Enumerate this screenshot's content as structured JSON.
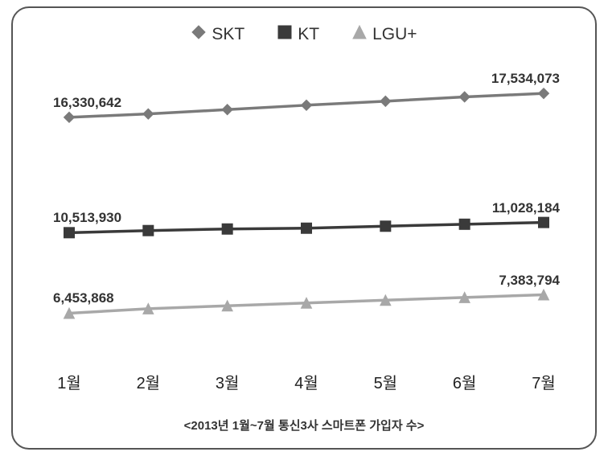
{
  "chart": {
    "type": "line",
    "background_color": "#ffffff",
    "border_color": "#555555",
    "border_radius": 22,
    "caption": "<2013년 1월~7월 통신3사 스마트폰 가입자 수>",
    "caption_fontsize": 15,
    "ylim": [
      4000000,
      19000000
    ],
    "categories": [
      "1월",
      "2월",
      "3월",
      "4월",
      "5월",
      "6월",
      "7월"
    ],
    "x_label_fontsize": 20,
    "data_label_fontsize": 17,
    "legend_fontsize": 21,
    "series": [
      {
        "name": "SKT",
        "color": "#7a7a7a",
        "marker": "diamond",
        "marker_size": 13,
        "line_width": 3.5,
        "values": [
          16330642,
          16500000,
          16720000,
          16940000,
          17140000,
          17360000,
          17534073
        ],
        "shown_labels": {
          "0": "16,330,642",
          "6": "17,534,073"
        }
      },
      {
        "name": "KT",
        "color": "#3a3a3a",
        "marker": "square",
        "marker_size": 13,
        "line_width": 3.5,
        "values": [
          10513930,
          10620000,
          10700000,
          10740000,
          10840000,
          10940000,
          11028184
        ],
        "shown_labels": {
          "0": "10,513,930",
          "6": "11,028,184"
        }
      },
      {
        "name": "LGU+",
        "color": "#a8a8a8",
        "marker": "triangle",
        "marker_size": 13,
        "line_width": 3.5,
        "values": [
          6453868,
          6680000,
          6830000,
          6970000,
          7110000,
          7250000,
          7383794
        ],
        "shown_labels": {
          "0": "6,453,868",
          "6": "7,383,794"
        }
      }
    ]
  }
}
